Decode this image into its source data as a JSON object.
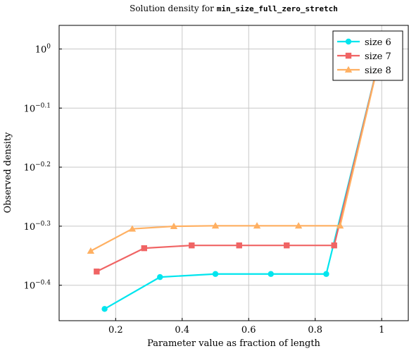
{
  "chart_data": {
    "type": "line",
    "title_prefix": "Solution density for ",
    "title_code": "min_size_full_zero_stretch",
    "xlabel": "Parameter value as fraction of length",
    "ylabel": "Observed density",
    "xlim": [
      0.03,
      1.08
    ],
    "ylim_log10": [
      -0.46,
      0.04
    ],
    "y_scale": "log",
    "grid": true,
    "legend_position": "top-right",
    "x_ticks": [
      {
        "value": 0.2,
        "label": "0.2"
      },
      {
        "value": 0.4,
        "label": "0.4"
      },
      {
        "value": 0.6,
        "label": "0.6"
      },
      {
        "value": 0.8,
        "label": "0.8"
      },
      {
        "value": 1.0,
        "label": "1"
      }
    ],
    "y_ticks": [
      {
        "log10": 0,
        "base": "10",
        "exp": "0"
      },
      {
        "log10": -0.1,
        "base": "10",
        "exp": "−0.1"
      },
      {
        "log10": -0.2,
        "base": "10",
        "exp": "−0.2"
      },
      {
        "log10": -0.3,
        "base": "10",
        "exp": "−0.3"
      },
      {
        "log10": -0.4,
        "base": "10",
        "exp": "−0.4"
      }
    ],
    "series": [
      {
        "name": "size 6",
        "color": "#00e5ee",
        "marker": "circle",
        "points": [
          {
            "x": 0.1667,
            "y": 0.363
          },
          {
            "x": 0.3333,
            "y": 0.411
          },
          {
            "x": 0.5,
            "y": 0.416
          },
          {
            "x": 0.6667,
            "y": 0.416
          },
          {
            "x": 0.8333,
            "y": 0.416
          },
          {
            "x": 1.0,
            "y": 1.0
          }
        ]
      },
      {
        "name": "size 7",
        "color": "#f06464",
        "marker": "square",
        "points": [
          {
            "x": 0.1429,
            "y": 0.42
          },
          {
            "x": 0.2857,
            "y": 0.46
          },
          {
            "x": 0.4286,
            "y": 0.465
          },
          {
            "x": 0.5714,
            "y": 0.465
          },
          {
            "x": 0.7143,
            "y": 0.465
          },
          {
            "x": 0.8571,
            "y": 0.465
          },
          {
            "x": 1.0,
            "y": 1.0
          }
        ]
      },
      {
        "name": "size 8",
        "color": "#ffb062",
        "marker": "triangle",
        "points": [
          {
            "x": 0.125,
            "y": 0.455
          },
          {
            "x": 0.25,
            "y": 0.496
          },
          {
            "x": 0.375,
            "y": 0.501
          },
          {
            "x": 0.5,
            "y": 0.502
          },
          {
            "x": 0.625,
            "y": 0.502
          },
          {
            "x": 0.75,
            "y": 0.502
          },
          {
            "x": 0.875,
            "y": 0.502
          },
          {
            "x": 1.0,
            "y": 1.0
          }
        ]
      }
    ]
  }
}
